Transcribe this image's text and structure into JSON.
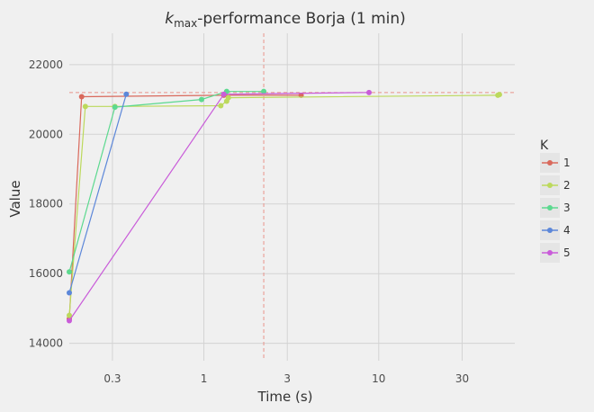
{
  "chart_data": {
    "type": "line",
    "title_main": "k",
    "title_sub": "max",
    "title_rest": "-performance Borja (1 min)",
    "xlabel": "Time (s)",
    "ylabel": "Value",
    "x_scale": "log",
    "xlim": [
      0.17,
      60
    ],
    "ylim": [
      13500,
      22900
    ],
    "x_ticks": [
      0.3,
      1,
      3,
      10,
      30
    ],
    "x_tick_labels": [
      "0.3",
      "1",
      "3",
      "10",
      "30"
    ],
    "y_ticks": [
      14000,
      16000,
      18000,
      20000,
      22000
    ],
    "y_tick_labels": [
      "14000",
      "16000",
      "18000",
      "20000",
      "22000"
    ],
    "grid": true,
    "legend_title": "K",
    "legend_position": "right",
    "hline": {
      "y": 21200,
      "color": "#e8938b",
      "style": "dashed"
    },
    "vline": {
      "x": 2.2,
      "color": "#e8938b",
      "style": "dashed"
    },
    "series": [
      {
        "name": "1",
        "color": "#d9695c",
        "x": [
          0.17,
          0.2,
          1.3,
          3.6
        ],
        "y": [
          14700,
          21080,
          21120,
          21120
        ]
      },
      {
        "name": "2",
        "color": "#bcd95c",
        "x": [
          0.17,
          0.21,
          0.31,
          1.25,
          1.35,
          1.38,
          48,
          49
        ],
        "y": [
          14800,
          20800,
          20800,
          20820,
          20950,
          21050,
          21120,
          21140
        ]
      },
      {
        "name": "3",
        "color": "#5cd98f",
        "x": [
          0.17,
          0.31,
          0.97,
          1.35,
          2.2
        ],
        "y": [
          16050,
          20780,
          21000,
          21230,
          21230
        ]
      },
      {
        "name": "4",
        "color": "#5c87d9",
        "x": [
          0.17,
          0.36
        ],
        "y": [
          15450,
          21150
        ]
      },
      {
        "name": "5",
        "color": "#c95cd9",
        "x": [
          0.17,
          1.3,
          8.8
        ],
        "y": [
          14650,
          21150,
          21200
        ]
      }
    ]
  }
}
